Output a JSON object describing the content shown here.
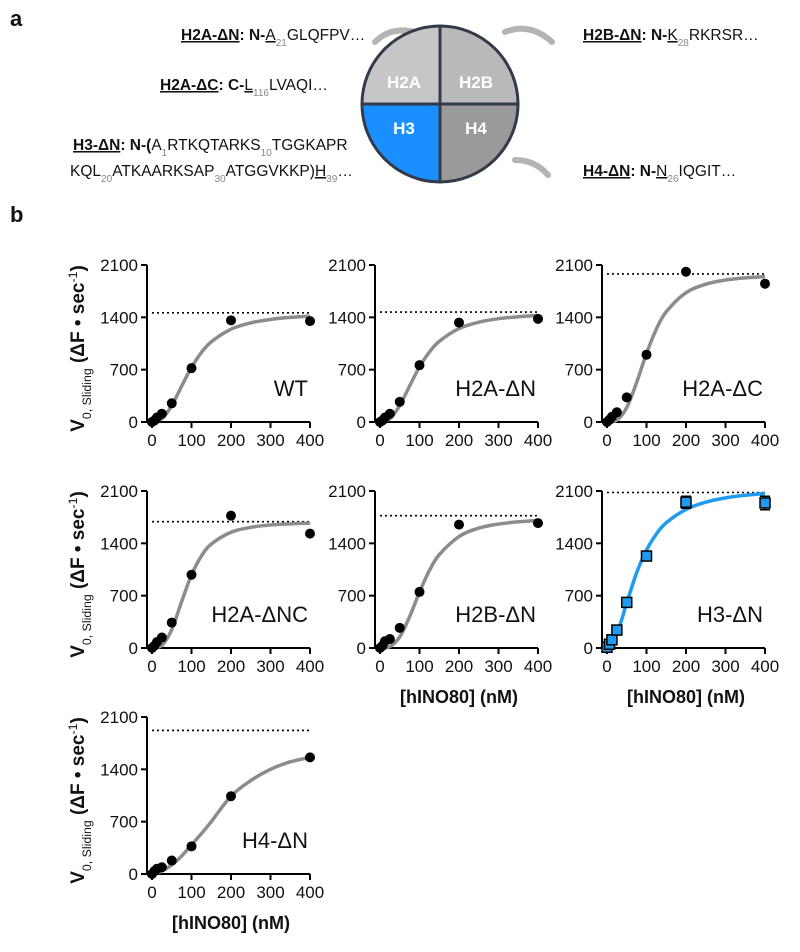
{
  "panel_labels": [
    "a",
    "b"
  ],
  "diagram": {
    "histones": [
      "H2A",
      "H2B",
      "H3",
      "H4"
    ],
    "colors": [
      "#c6c6c6",
      "#b9b9b9",
      "#1a8fff",
      "#9a9a9a"
    ],
    "labels": [
      {
        "lines": [
          [
            {
              "text": "H2A-ΔN",
              "style": "bold-underline"
            },
            {
              "text": ": N-",
              "style": "bold"
            },
            {
              "text": "A",
              "style": "underline"
            },
            {
              "text": "21",
              "style": "sub"
            },
            {
              "text": "GLQFPV…",
              "style": "plain"
            }
          ]
        ]
      },
      {
        "lines": [
          [
            {
              "text": "H2B-ΔN",
              "style": "bold-underline"
            },
            {
              "text": ": N-",
              "style": "bold"
            },
            {
              "text": "K",
              "style": "underline"
            },
            {
              "text": "28",
              "style": "sub"
            },
            {
              "text": "RKRSR…",
              "style": "plain"
            }
          ]
        ]
      },
      {
        "lines": [
          [
            {
              "text": "H2A-ΔC",
              "style": "bold-underline"
            },
            {
              "text": ": C-",
              "style": "bold"
            },
            {
              "text": "L",
              "style": "underline"
            },
            {
              "text": "116",
              "style": "sub"
            },
            {
              "text": "LVAQI…",
              "style": "plain"
            }
          ]
        ]
      },
      {
        "lines": [
          [
            {
              "text": "H3-ΔN",
              "style": "bold-underline"
            },
            {
              "text": ": N-(",
              "style": "bold"
            },
            {
              "text": "A",
              "style": "plain"
            },
            {
              "text": "1",
              "style": "sub"
            },
            {
              "text": "RTKQTARKS",
              "style": "plain"
            },
            {
              "text": "10",
              "style": "sub"
            },
            {
              "text": "TGGKAPR",
              "style": "plain"
            }
          ],
          [
            {
              "text": "KQL",
              "style": "plain"
            },
            {
              "text": "20",
              "style": "sub"
            },
            {
              "text": "ATKAARKSAP",
              "style": "plain"
            },
            {
              "text": "30",
              "style": "sub"
            },
            {
              "text": "ATGGVKKP)",
              "style": "plain"
            },
            {
              "text": "H",
              "style": "underline"
            },
            {
              "text": "39",
              "style": "sub"
            },
            {
              "text": "…",
              "style": "plain"
            }
          ]
        ]
      },
      {
        "lines": [
          [
            {
              "text": "H4-ΔN",
              "style": "bold-underline"
            },
            {
              "text": ": N-",
              "style": "bold"
            },
            {
              "text": "N",
              "style": "underline"
            },
            {
              "text": "26",
              "style": "sub"
            },
            {
              "text": "IQGIT…",
              "style": "plain"
            }
          ]
        ]
      }
    ]
  },
  "chart_data": [
    {
      "type": "scatter",
      "annotation": "WT",
      "marker": "circle",
      "color": "#000000",
      "fit_color": "#8c8c8c",
      "ylabel": [
        {
          "text": "V",
          "style": "bold"
        },
        {
          "text": "0, Sliding",
          "style": "sub"
        },
        {
          "text": " (ΔF • sec",
          "style": "bold"
        },
        {
          "text": "-1",
          "style": "sup"
        },
        {
          "text": ")",
          "style": "bold"
        }
      ],
      "x": [
        0,
        6.25,
        12.5,
        25,
        50,
        100,
        200,
        400
      ],
      "values": [
        0,
        20,
        60,
        110,
        250,
        720,
        1360,
        1350
      ],
      "fit": {
        "x": [
          0,
          25,
          50,
          75,
          100,
          125,
          150,
          200,
          250,
          300,
          350,
          400
        ],
        "values": [
          0,
          44,
          219,
          479,
          730,
          929,
          1072,
          1241,
          1326,
          1372,
          1399,
          1416
        ]
      },
      "reference_line": 1460,
      "xlim": [
        0,
        400
      ],
      "xticks": [
        0,
        100,
        200,
        300,
        400
      ],
      "ylim": [
        0,
        2100
      ],
      "yticks": [
        0,
        700,
        1400,
        2100
      ]
    },
    {
      "type": "scatter",
      "annotation": "H2A-ΔN",
      "marker": "circle",
      "color": "#000000",
      "fit_color": "#8c8c8c",
      "x": [
        0,
        6.25,
        12.5,
        25,
        50,
        100,
        200,
        400
      ],
      "values": [
        0,
        20,
        60,
        110,
        270,
        760,
        1330,
        1380
      ],
      "fit": {
        "x": [
          0,
          25,
          50,
          75,
          100,
          125,
          150,
          200,
          250,
          300,
          350,
          400
        ],
        "values": [
          0,
          45,
          221,
          482,
          735,
          935,
          1079,
          1250,
          1335,
          1382,
          1408,
          1426
        ]
      },
      "reference_line": 1470,
      "xlim": [
        0,
        400
      ],
      "xticks": [
        0,
        100,
        200,
        300,
        400
      ],
      "ylim": [
        0,
        2100
      ],
      "yticks": [
        0,
        700,
        1400,
        2100
      ]
    },
    {
      "type": "scatter",
      "annotation": "H2A-ΔC",
      "marker": "circle",
      "color": "#000000",
      "fit_color": "#8c8c8c",
      "x": [
        0,
        6.25,
        12.5,
        25,
        50,
        100,
        200,
        400
      ],
      "values": [
        0,
        30,
        70,
        130,
        330,
        900,
        2010,
        1850
      ],
      "fit": {
        "x": [
          0,
          25,
          50,
          75,
          100,
          125,
          150,
          200,
          250,
          300,
          350,
          400
        ],
        "values": [
          0,
          26,
          193,
          528,
          918,
          1243,
          1475,
          1730,
          1843,
          1899,
          1928,
          1944
        ]
      },
      "reference_line": 1980,
      "xlim": [
        0,
        400
      ],
      "xticks": [
        0,
        100,
        200,
        300,
        400
      ],
      "ylim": [
        0,
        2100
      ],
      "yticks": [
        0,
        700,
        1400,
        2100
      ]
    },
    {
      "type": "scatter",
      "annotation": "H2A-ΔNC",
      "marker": "circle",
      "color": "#000000",
      "fit_color": "#8c8c8c",
      "ylabel": [
        {
          "text": "V",
          "style": "bold"
        },
        {
          "text": "0, Sliding",
          "style": "sub"
        },
        {
          "text": " (ΔF • sec",
          "style": "bold"
        },
        {
          "text": "-1",
          "style": "sup"
        },
        {
          "text": ")",
          "style": "bold"
        }
      ],
      "x": [
        0,
        6.25,
        12.5,
        25,
        50,
        100,
        200,
        400
      ],
      "values": [
        0,
        30,
        80,
        140,
        340,
        980,
        1770,
        1530
      ],
      "fit": {
        "x": [
          0,
          25,
          50,
          75,
          100,
          125,
          150,
          200,
          250,
          300,
          350,
          400
        ],
        "values": [
          0,
          35,
          247,
          620,
          977,
          1230,
          1389,
          1548,
          1614,
          1646,
          1661,
          1671
        ]
      },
      "reference_line": 1690,
      "xlim": [
        0,
        400
      ],
      "xticks": [
        0,
        100,
        200,
        300,
        400
      ],
      "ylim": [
        0,
        2100
      ],
      "yticks": [
        0,
        700,
        1400,
        2100
      ]
    },
    {
      "type": "scatter",
      "annotation": "H2B-ΔN",
      "marker": "circle",
      "color": "#000000",
      "fit_color": "#8c8c8c",
      "xlabel": "[hINO80] (nM)",
      "x": [
        0,
        6.25,
        12.5,
        25,
        50,
        100,
        200,
        400
      ],
      "values": [
        0,
        30,
        90,
        120,
        270,
        750,
        1650,
        1670
      ],
      "fit": {
        "x": [
          0,
          25,
          50,
          75,
          100,
          125,
          150,
          200,
          250,
          300,
          350,
          400
        ],
        "values": [
          0,
          20,
          149,
          419,
          746,
          1035,
          1248,
          1491,
          1604,
          1658,
          1688,
          1705
        ]
      },
      "reference_line": 1770,
      "xlim": [
        0,
        400
      ],
      "xticks": [
        0,
        100,
        200,
        300,
        400
      ],
      "ylim": [
        0,
        2100
      ],
      "yticks": [
        0,
        700,
        1400,
        2100
      ]
    },
    {
      "type": "scatter",
      "annotation": "H3-ΔN",
      "marker": "square",
      "color": "#1e9bef",
      "fit_color": "#1e9bef",
      "xlabel": "[hINO80] (nM)",
      "x": [
        0,
        6.25,
        12.5,
        25,
        50,
        100,
        200,
        400
      ],
      "values": [
        10,
        50,
        110,
        240,
        610,
        1230,
        1950,
        1940
      ],
      "errors": [
        20,
        20,
        30,
        40,
        50,
        50,
        80,
        90
      ],
      "fit": {
        "x": [
          0,
          25,
          50,
          75,
          100,
          125,
          150,
          200,
          250,
          300,
          350,
          400
        ],
        "values": [
          0,
          191,
          604,
          1006,
          1311,
          1525,
          1675,
          1853,
          1950,
          2008,
          2043,
          2068
        ]
      },
      "reference_line": 2080,
      "xlim": [
        0,
        400
      ],
      "xticks": [
        0,
        100,
        200,
        300,
        400
      ],
      "ylim": [
        0,
        2100
      ],
      "yticks": [
        0,
        700,
        1400,
        2100
      ]
    },
    {
      "type": "scatter",
      "annotation": "H4-ΔN",
      "marker": "circle",
      "color": "#000000",
      "fit_color": "#8c8c8c",
      "xlabel": "[hINO80] (nM)",
      "ylabel": [
        {
          "text": "V",
          "style": "bold"
        },
        {
          "text": "0, Sliding",
          "style": "sub"
        },
        {
          "text": " (ΔF • sec",
          "style": "bold"
        },
        {
          "text": "-1",
          "style": "sup"
        },
        {
          "text": ")",
          "style": "bold"
        }
      ],
      "x": [
        0,
        6.25,
        12.5,
        25,
        50,
        100,
        200,
        400
      ],
      "values": [
        0,
        40,
        70,
        90,
        180,
        370,
        1040,
        1560
      ],
      "fit": {
        "x": [
          0,
          25,
          50,
          75,
          100,
          125,
          150,
          200,
          250,
          300,
          350,
          400
        ],
        "values": [
          0,
          40,
          120,
          240,
          390,
          540,
          700,
          1040,
          1250,
          1400,
          1500,
          1560
        ]
      },
      "reference_line": 1920,
      "xlim": [
        0,
        400
      ],
      "xticks": [
        0,
        100,
        200,
        300,
        400
      ],
      "ylim": [
        0,
        2100
      ],
      "yticks": [
        0,
        700,
        1400,
        2100
      ]
    }
  ]
}
